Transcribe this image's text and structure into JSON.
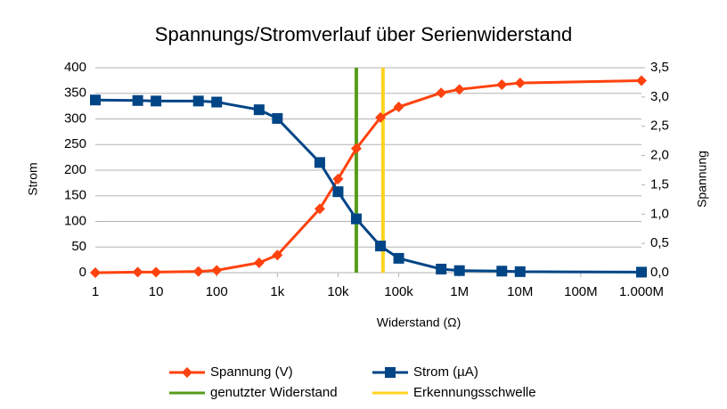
{
  "chart_data": {
    "type": "line",
    "title": "Spannungs/Stromverlauf über Serienwiderstand",
    "xlabel": "Widerstand (Ω)",
    "ylabel": "Strom",
    "y2label": "Spannung",
    "xlog": true,
    "x": [
      1,
      5,
      10,
      50,
      100,
      500,
      1000,
      5000,
      10000,
      20000,
      50000,
      100000,
      500000,
      1000000,
      5000000,
      10000000,
      1000000000
    ],
    "xlim": [
      1,
      1000000000
    ],
    "xticks": [
      1,
      10,
      100,
      {
        "value": 1000,
        "label": "1k"
      },
      {
        "value": 10000,
        "label": "10k"
      },
      {
        "value": 100000,
        "label": "100k"
      },
      {
        "value": 1000000,
        "label": "1M"
      },
      {
        "value": 10000000,
        "label": "10M"
      },
      {
        "value": 100000000,
        "label": "100M"
      },
      {
        "value": 1000000000,
        "label": "1.000M"
      }
    ],
    "ylim": [
      0,
      400
    ],
    "yticks": [
      0,
      50,
      100,
      150,
      200,
      250,
      300,
      350,
      400
    ],
    "y2lim": [
      0,
      3.5
    ],
    "y2ticks": [
      {
        "value": 0,
        "label": "0,0"
      },
      {
        "value": 0.5,
        "label": "0,5"
      },
      {
        "value": 1,
        "label": "1,0"
      },
      {
        "value": 1.5,
        "label": "1,5"
      },
      {
        "value": 2,
        "label": "2,0"
      },
      {
        "value": 2.5,
        "label": "2,5"
      },
      {
        "value": 3,
        "label": "3,0"
      },
      {
        "value": 3.5,
        "label": "3,5"
      }
    ],
    "grid": true,
    "legend": "bottom",
    "series": [
      {
        "name": "Spannung (V)",
        "color": "#ff420e",
        "axis": "y2",
        "marker": "diamond",
        "values": [
          0.0,
          0.01,
          0.01,
          0.02,
          0.04,
          0.17,
          0.3,
          1.09,
          1.6,
          2.12,
          2.65,
          2.83,
          3.07,
          3.13,
          3.21,
          3.24,
          3.28
        ]
      },
      {
        "name": "Strom (µA)",
        "color": "#004586",
        "axis": "y",
        "marker": "square",
        "values": [
          337,
          336,
          335,
          335,
          333,
          318,
          301,
          215,
          158,
          105,
          52,
          28,
          7,
          4,
          3,
          2,
          1
        ]
      }
    ],
    "vlines": [
      {
        "name": "genutzter Widerstand",
        "color": "#579d1c",
        "x": 20000
      },
      {
        "name": "Erkennungsschwelle",
        "color": "#ffd320",
        "x": 55000
      }
    ]
  }
}
